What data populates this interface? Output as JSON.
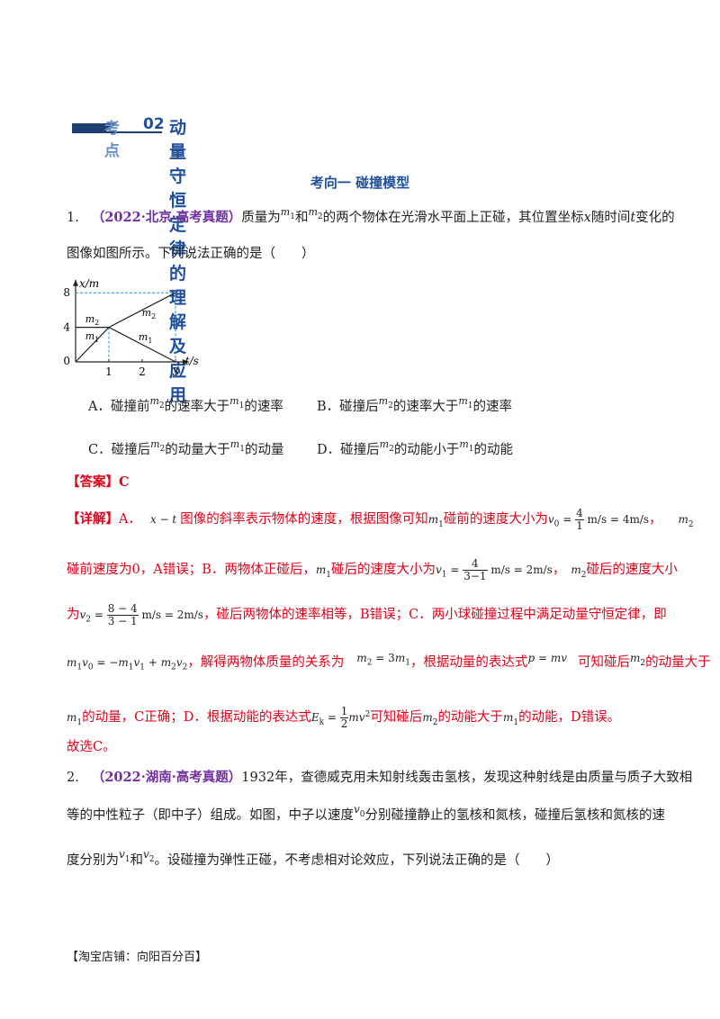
{
  "section": {
    "kaodian_label": "考点",
    "number": "02",
    "title": "动量守恒定律的理解及应用"
  },
  "subsection": {
    "title": "考向一  碰撞模型"
  },
  "q1": {
    "num": "1.",
    "source": "（2022·北京·高考真题）",
    "line1_a": "质量为",
    "m1": "m",
    "m1_sub": "1",
    "and": "和",
    "m2": "m",
    "m2_sub": "2",
    "line1_b": "的两个物体在光滑水平面上正碰，其位置坐标",
    "x": "x",
    "line1_c": "随时间",
    "t": "t",
    "line1_d": "变化的",
    "line2": "图像如图所示。下列说法正确的是（　　）",
    "options": {
      "A_pre": "A．碰撞前",
      "A_mid": "的速率大于",
      "A_post": "的速率",
      "B_pre": "B．碰撞后",
      "B_mid": "的速率大于",
      "B_post": "的速率",
      "C_pre": "C．碰撞后",
      "C_mid": "的动量大于",
      "C_post": "的动量",
      "D_pre": "D．碰撞后",
      "D_mid": "的动能小于",
      "D_post": "的动能"
    },
    "answer_label": "【答案】",
    "answer": "C",
    "detail_label": "【详解】",
    "detail": {
      "l1a": "A．",
      "l1b": "图像的斜率表示物体的速度，根据图像可知",
      "l1c": "碰前的速度大小为",
      "l1d": "，",
      "l2a": "碰前速度为0，A错误；B．两物体正碰后，",
      "l2b": "碰后的速度大小为",
      "l2c": "，",
      "l2d": "碰后的速度大小",
      "l3a": "为",
      "l3b": "，碰后两物体的速率相等，B错误；C．两小球碰撞过程中满足动量守恒定律，即",
      "l4a": "，解得两物体质量的关系为",
      "l4b": "，根据动量的表达式",
      "l4c": "可知碰后",
      "l4d": "的动量大于",
      "l5a": "的动量，C正确；D．根据动能的表达式",
      "l5b": "可知碰后",
      "l5c": "的动能大于",
      "l5d": "的动能，D错误。",
      "l6": "故选C。"
    }
  },
  "chart_data": {
    "type": "line",
    "xlabel": "t/s",
    "ylabel": "x/m",
    "x_ticks": [
      "1",
      "2",
      "3"
    ],
    "y_ticks": [
      "4",
      "8"
    ],
    "origin_label": "0",
    "xlim": [
      0,
      3.4
    ],
    "ylim": [
      0,
      9.5
    ],
    "series": [
      {
        "name": "m2",
        "x": [
          0,
          1,
          3
        ],
        "y": [
          4,
          4,
          8
        ]
      },
      {
        "name": "m1",
        "x": [
          0,
          1,
          3
        ],
        "y": [
          0,
          4,
          0
        ]
      }
    ],
    "labels": [
      {
        "text": "m",
        "sub": "2",
        "at": [
          0.5,
          4.6
        ]
      },
      {
        "text": "m",
        "sub": "1",
        "at": [
          0.5,
          2.6
        ]
      },
      {
        "text": "m",
        "sub": "2",
        "at": [
          2.2,
          5.3
        ]
      },
      {
        "text": "m",
        "sub": "1",
        "at": [
          2.1,
          2.5
        ]
      }
    ]
  },
  "q2": {
    "num": "2.",
    "source": "（2022·湖南·高考真题）",
    "line1": "1932年，查德威克用未知射线轰击氢核，发现这种射线是由质量与质子大致相",
    "line2a": "等的中性粒子（即中子）组成。如图，中子以速度",
    "line2b": "分别碰撞静止的氢核和氮核，碰撞后氢核和氮核的速",
    "line3a": "度分别为",
    "line3b": "和",
    "line3c": "。设碰撞为弹性正碰，不考虑相对论效应，下列说法正确的是（　　）",
    "v": "v",
    "v0_sub": "0",
    "v1_sub": "1",
    "v2_sub": "2"
  },
  "footer": "【淘宝店铺：向阳百分百】"
}
